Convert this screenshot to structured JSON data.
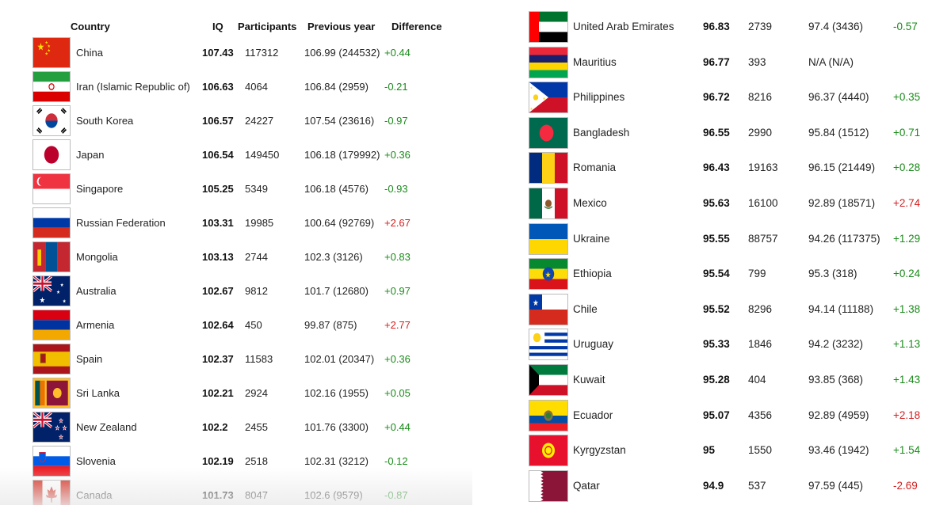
{
  "left": {
    "headers": {
      "country": "Country",
      "iq": "IQ",
      "participants": "Participants",
      "previous": "Previous year",
      "difference": "Difference"
    },
    "rows": [
      {
        "country": "China",
        "iq": "107.43",
        "participants": "117312",
        "previous": "106.99 (244532)",
        "difference": "+0.44",
        "sign": "pos",
        "flag": "china"
      },
      {
        "country": "Iran (Islamic Republic of)",
        "iq": "106.63",
        "participants": "4064",
        "previous": "106.84 (2959)",
        "difference": "-0.21",
        "sign": "pos",
        "flag": "iran"
      },
      {
        "country": "South Korea",
        "iq": "106.57",
        "participants": "24227",
        "previous": "107.54 (23616)",
        "difference": "-0.97",
        "sign": "pos",
        "flag": "south-korea"
      },
      {
        "country": "Japan",
        "iq": "106.54",
        "participants": "149450",
        "previous": "106.18 (179992)",
        "difference": "+0.36",
        "sign": "pos",
        "flag": "japan"
      },
      {
        "country": "Singapore",
        "iq": "105.25",
        "participants": "5349",
        "previous": "106.18 (4576)",
        "difference": "-0.93",
        "sign": "pos",
        "flag": "singapore"
      },
      {
        "country": "Russian Federation",
        "iq": "103.31",
        "participants": "19985",
        "previous": "100.64 (92769)",
        "difference": "+2.67",
        "sign": "neg",
        "flag": "russia"
      },
      {
        "country": "Mongolia",
        "iq": "103.13",
        "participants": "2744",
        "previous": "102.3 (3126)",
        "difference": "+0.83",
        "sign": "pos",
        "flag": "mongolia"
      },
      {
        "country": "Australia",
        "iq": "102.67",
        "participants": "9812",
        "previous": "101.7 (12680)",
        "difference": "+0.97",
        "sign": "pos",
        "flag": "australia"
      },
      {
        "country": "Armenia",
        "iq": "102.64",
        "participants": "450",
        "previous": "99.87 (875)",
        "difference": "+2.77",
        "sign": "neg",
        "flag": "armenia"
      },
      {
        "country": "Spain",
        "iq": "102.37",
        "participants": "11583",
        "previous": "102.01 (20347)",
        "difference": "+0.36",
        "sign": "pos",
        "flag": "spain"
      },
      {
        "country": "Sri Lanka",
        "iq": "102.21",
        "participants": "2924",
        "previous": "102.16 (1955)",
        "difference": "+0.05",
        "sign": "pos",
        "flag": "sri-lanka"
      },
      {
        "country": "New Zealand",
        "iq": "102.2",
        "participants": "2455",
        "previous": "101.76 (3300)",
        "difference": "+0.44",
        "sign": "pos",
        "flag": "new-zealand"
      },
      {
        "country": "Slovenia",
        "iq": "102.19",
        "participants": "2518",
        "previous": "102.31 (3212)",
        "difference": "-0.12",
        "sign": "pos",
        "flag": "slovenia"
      },
      {
        "country": "Canada",
        "iq": "101.73",
        "participants": "8047",
        "previous": "102.6 (9579)",
        "difference": "-0.87",
        "sign": "pos",
        "flag": "canada"
      }
    ]
  },
  "right": {
    "rows": [
      {
        "country": "United Arab Emirates",
        "iq": "96.83",
        "participants": "2739",
        "previous": "97.4 (3436)",
        "difference": "-0.57",
        "sign": "pos",
        "flag": "uae"
      },
      {
        "country": "Mauritius",
        "iq": "96.77",
        "participants": "393",
        "previous": "N/A (N/A)",
        "difference": "",
        "sign": "pos",
        "flag": "mauritius"
      },
      {
        "country": "Philippines",
        "iq": "96.72",
        "participants": "8216",
        "previous": "96.37 (4440)",
        "difference": "+0.35",
        "sign": "pos",
        "flag": "philippines"
      },
      {
        "country": "Bangladesh",
        "iq": "96.55",
        "participants": "2990",
        "previous": "95.84 (1512)",
        "difference": "+0.71",
        "sign": "pos",
        "flag": "bangladesh"
      },
      {
        "country": "Romania",
        "iq": "96.43",
        "participants": "19163",
        "previous": "96.15 (21449)",
        "difference": "+0.28",
        "sign": "pos",
        "flag": "romania"
      },
      {
        "country": "Mexico",
        "iq": "95.63",
        "participants": "16100",
        "previous": "92.89 (18571)",
        "difference": "+2.74",
        "sign": "neg",
        "flag": "mexico"
      },
      {
        "country": "Ukraine",
        "iq": "95.55",
        "participants": "88757",
        "previous": "94.26 (117375)",
        "difference": "+1.29",
        "sign": "pos",
        "flag": "ukraine"
      },
      {
        "country": "Ethiopia",
        "iq": "95.54",
        "participants": "799",
        "previous": "95.3 (318)",
        "difference": "+0.24",
        "sign": "pos",
        "flag": "ethiopia"
      },
      {
        "country": "Chile",
        "iq": "95.52",
        "participants": "8296",
        "previous": "94.14 (11188)",
        "difference": "+1.38",
        "sign": "pos",
        "flag": "chile"
      },
      {
        "country": "Uruguay",
        "iq": "95.33",
        "participants": "1846",
        "previous": "94.2 (3232)",
        "difference": "+1.13",
        "sign": "pos",
        "flag": "uruguay"
      },
      {
        "country": "Kuwait",
        "iq": "95.28",
        "participants": "404",
        "previous": "93.85 (368)",
        "difference": "+1.43",
        "sign": "pos",
        "flag": "kuwait"
      },
      {
        "country": "Ecuador",
        "iq": "95.07",
        "participants": "4356",
        "previous": "92.89 (4959)",
        "difference": "+2.18",
        "sign": "neg",
        "flag": "ecuador"
      },
      {
        "country": "Kyrgyzstan",
        "iq": "95",
        "participants": "1550",
        "previous": "93.46 (1942)",
        "difference": "+1.54",
        "sign": "pos",
        "flag": "kyrgyzstan"
      },
      {
        "country": "Qatar",
        "iq": "94.9",
        "participants": "537",
        "previous": "97.59 (445)",
        "difference": "-2.69",
        "sign": "neg",
        "flag": "qatar"
      }
    ]
  },
  "colors": {
    "positive": "#1a8a1a",
    "negative": "#d22020"
  }
}
